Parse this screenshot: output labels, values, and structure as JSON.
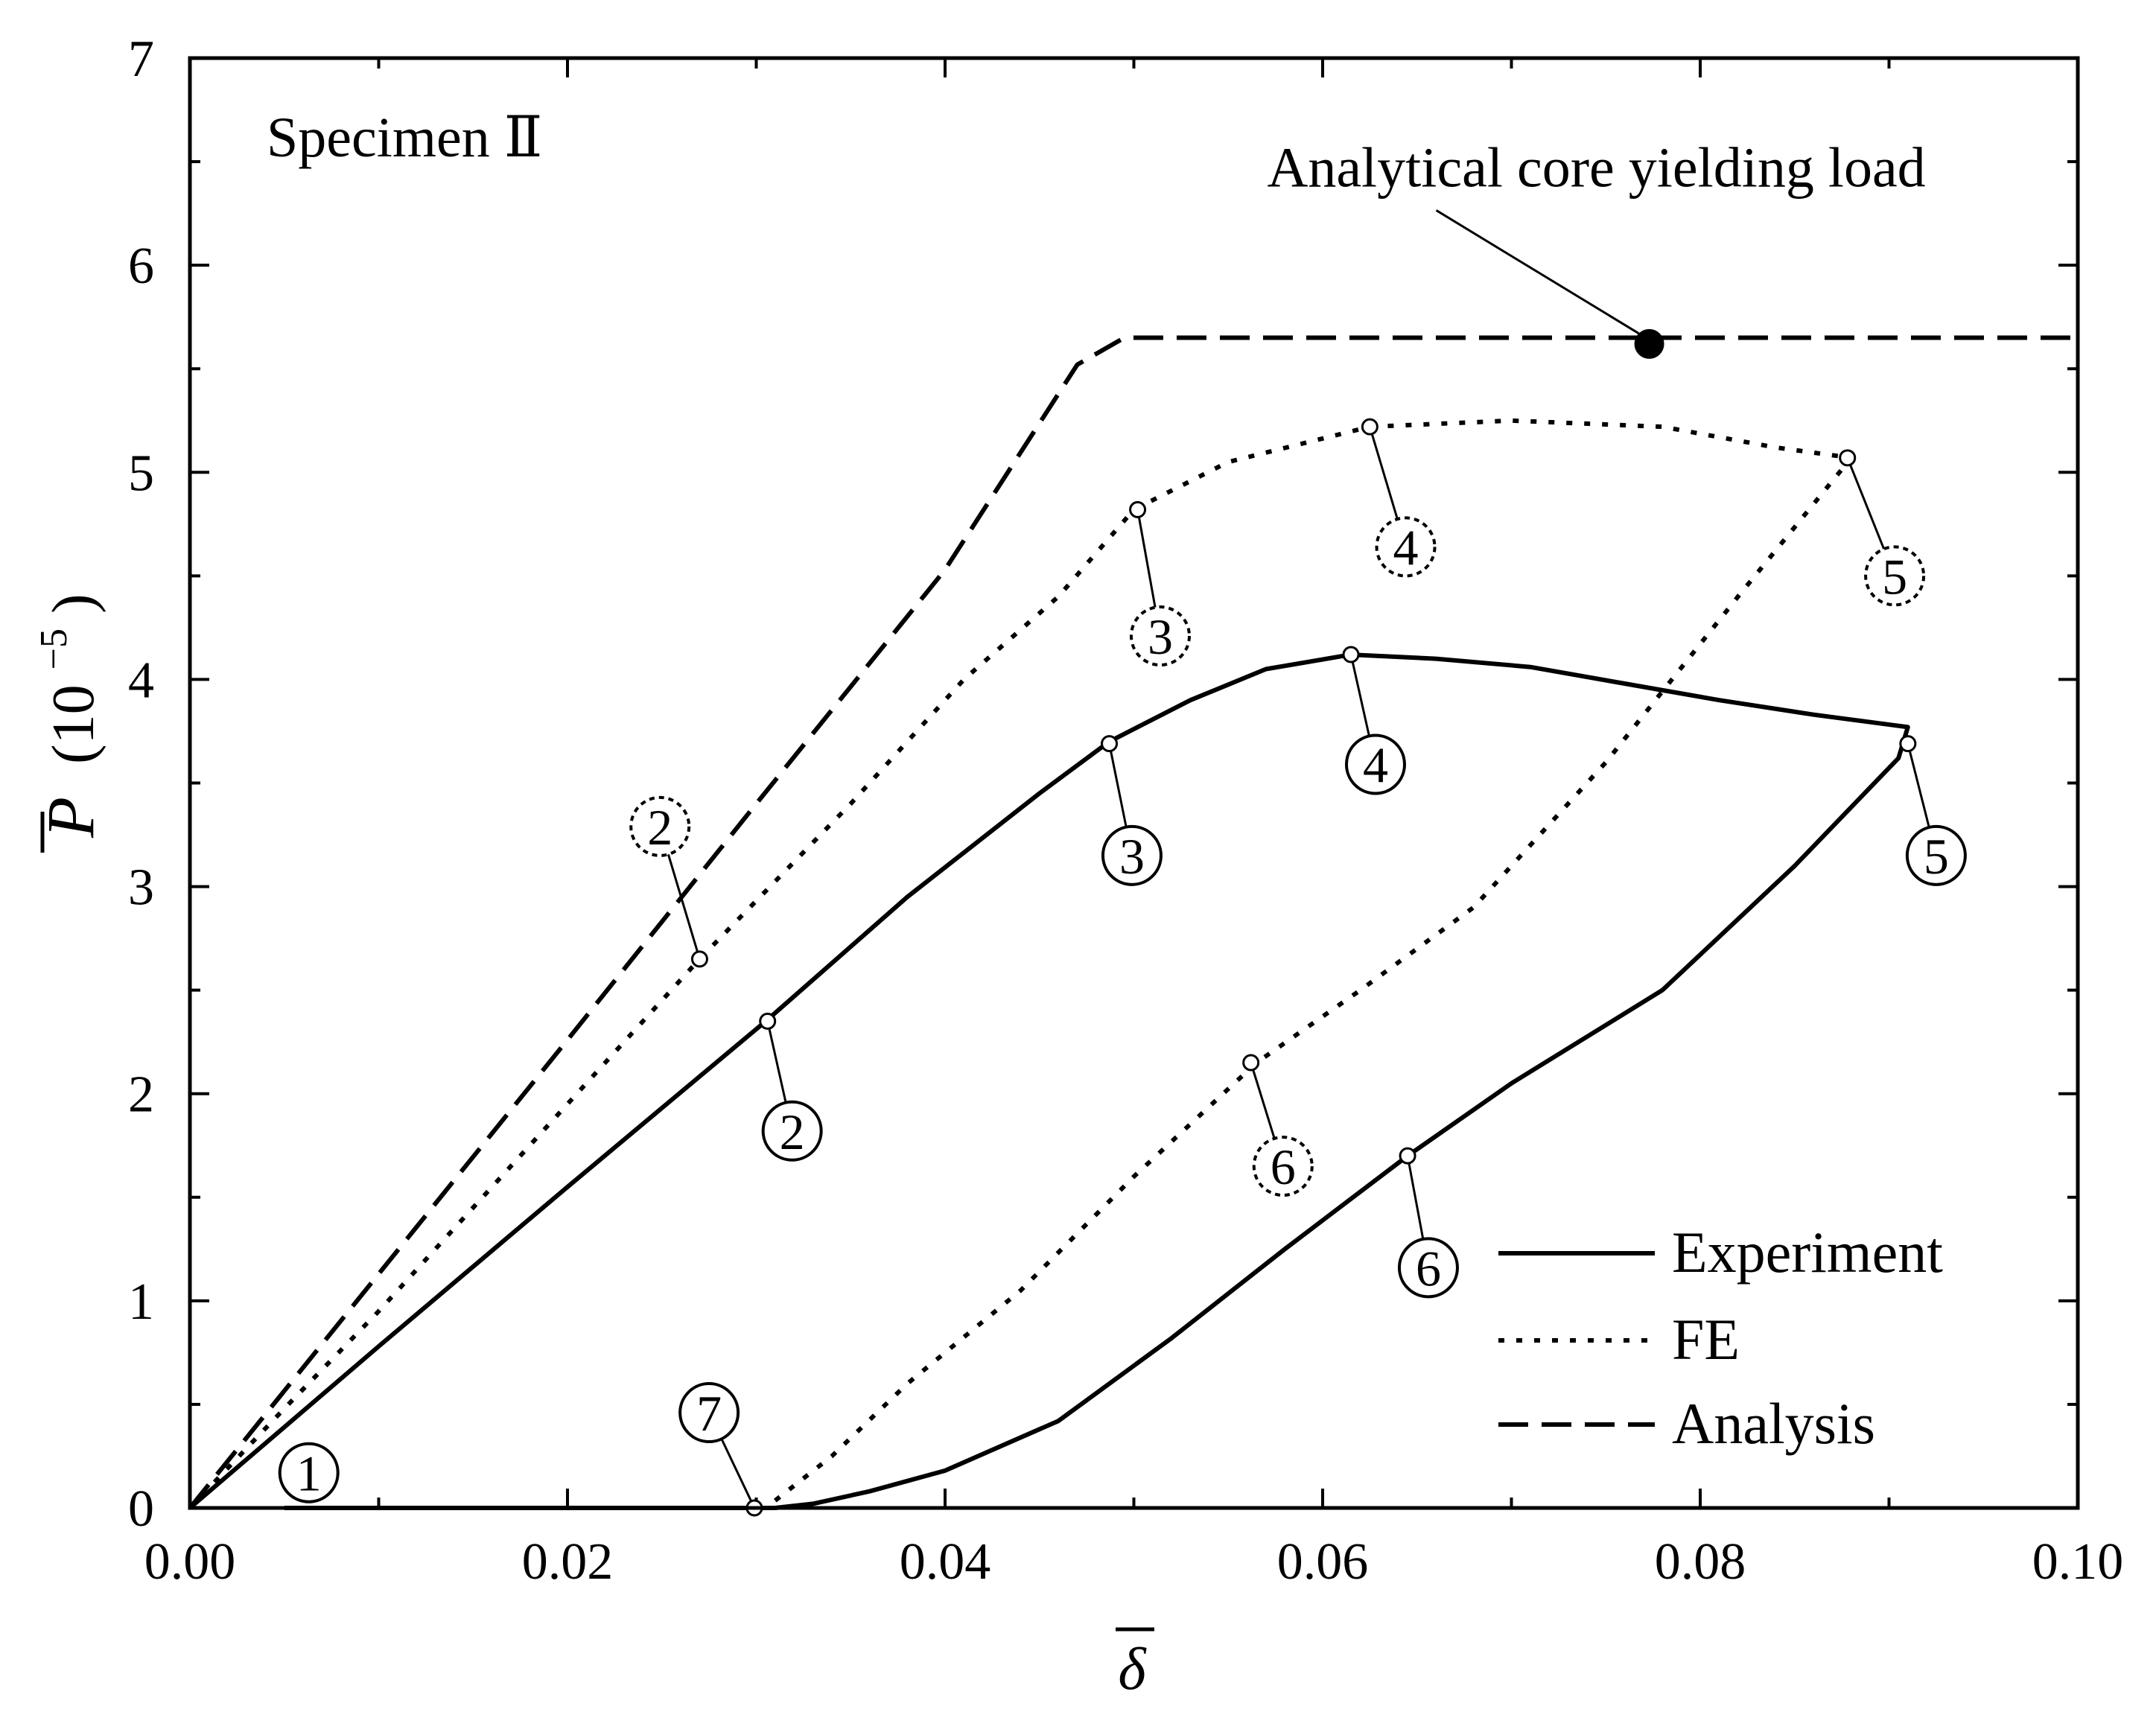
{
  "chart_data": {
    "type": "line",
    "title": "",
    "specimen_label": "Specimen Ⅱ",
    "xlabel": "δ",
    "ylabel_symbol": "P",
    "ylabel_unit": "(10",
    "ylabel_exponent": "−5",
    "ylabel_close": ")",
    "xlim": [
      0,
      0.1
    ],
    "ylim": [
      0,
      7
    ],
    "x_ticks": [
      0,
      0.02,
      0.04,
      0.06,
      0.08,
      0.1
    ],
    "x_tick_labels": [
      "0.00",
      "0.02",
      "0.04",
      "0.06",
      "0.08",
      "0.10"
    ],
    "y_ticks": [
      0,
      1,
      2,
      3,
      4,
      5,
      6,
      7
    ],
    "y_tick_labels": [
      "0",
      "1",
      "2",
      "3",
      "4",
      "5",
      "6",
      "7"
    ],
    "x_minor_step": 0.01,
    "y_minor_step": 0.5,
    "legend_position": "bottom-right",
    "series": [
      {
        "name": "Experiment",
        "style": "solid",
        "x": [
          0,
          0.01,
          0.02,
          0.0305,
          0.038,
          0.045,
          0.0487,
          0.053,
          0.057,
          0.0615,
          0.066,
          0.071,
          0.076,
          0.081,
          0.086,
          0.091,
          0.0905,
          0.085,
          0.078,
          0.07,
          0.0645,
          0.058,
          0.052,
          0.046,
          0.04,
          0.036,
          0.033,
          0.031,
          0.025,
          0.015,
          0.005
        ],
        "y": [
          0,
          0.78,
          1.55,
          2.35,
          2.95,
          3.45,
          3.7,
          3.9,
          4.05,
          4.12,
          4.1,
          4.06,
          3.98,
          3.9,
          3.83,
          3.77,
          3.62,
          3.1,
          2.5,
          2.05,
          1.7,
          1.25,
          0.82,
          0.42,
          0.18,
          0.08,
          0.02,
          0,
          0,
          0,
          0
        ]
      },
      {
        "name": "FE",
        "style": "dotted",
        "x": [
          0,
          0.005,
          0.01,
          0.015,
          0.02,
          0.027,
          0.035,
          0.041,
          0.046,
          0.05,
          0.055,
          0.0625,
          0.07,
          0.078,
          0.084,
          0.088,
          0.082,
          0.075,
          0.068,
          0.062,
          0.0565,
          0.05,
          0.044,
          0.038,
          0.034,
          0.0305
        ],
        "y": [
          0,
          0.48,
          0.95,
          1.45,
          1.95,
          2.65,
          3.4,
          4.0,
          4.4,
          4.82,
          5.05,
          5.22,
          5.25,
          5.22,
          5.12,
          5.07,
          4.4,
          3.6,
          2.9,
          2.5,
          2.15,
          1.6,
          1.05,
          0.6,
          0.25,
          0
        ]
      },
      {
        "name": "Analysis",
        "style": "dashed",
        "x": [
          0,
          0.01,
          0.02,
          0.03,
          0.04,
          0.047,
          0.0495,
          0.06,
          0.07,
          0.08,
          0.09,
          0.1
        ],
        "y": [
          0,
          1.13,
          2.26,
          3.4,
          4.53,
          5.52,
          5.65,
          5.65,
          5.65,
          5.65,
          5.65,
          5.65
        ]
      }
    ],
    "state_markers": [
      {
        "label": "1",
        "style": "solid",
        "lx": 0.0063,
        "ly": 0.17
      },
      {
        "label": "2",
        "style": "solid",
        "px": 0.0306,
        "py": 2.35,
        "lx": 0.0319,
        "ly": 1.82
      },
      {
        "label": "3",
        "style": "solid",
        "px": 0.0487,
        "py": 3.69,
        "lx": 0.0499,
        "ly": 3.15
      },
      {
        "label": "4",
        "style": "solid",
        "px": 0.0615,
        "py": 4.12,
        "lx": 0.0628,
        "ly": 3.59
      },
      {
        "label": "5",
        "style": "solid",
        "px": 0.091,
        "py": 3.69,
        "lx": 0.0925,
        "ly": 3.15
      },
      {
        "label": "6",
        "style": "solid",
        "px": 0.0645,
        "py": 1.7,
        "lx": 0.0656,
        "ly": 1.16
      },
      {
        "label": "7",
        "style": "solid",
        "px": 0.0299,
        "py": 0,
        "lx": 0.0275,
        "ly": 0.46
      },
      {
        "label": "2",
        "style": "dotted",
        "px": 0.027,
        "py": 2.65,
        "lx": 0.0249,
        "ly": 3.29
      },
      {
        "label": "3",
        "style": "dotted",
        "px": 0.0502,
        "py": 4.82,
        "lx": 0.0514,
        "ly": 4.21
      },
      {
        "label": "4",
        "style": "dotted",
        "px": 0.0625,
        "py": 5.22,
        "lx": 0.0644,
        "ly": 4.64
      },
      {
        "label": "5",
        "style": "dotted",
        "px": 0.0878,
        "py": 5.07,
        "lx": 0.0903,
        "ly": 4.5
      },
      {
        "label": "6",
        "style": "dotted",
        "px": 0.0562,
        "py": 2.15,
        "lx": 0.0579,
        "ly": 1.65
      }
    ],
    "annotation": {
      "text": "Analytical core yielding load",
      "point_x": 0.0773,
      "point_y": 5.62,
      "text_anchor_x": 0.0745,
      "text_anchor_y": 6.38
    }
  }
}
